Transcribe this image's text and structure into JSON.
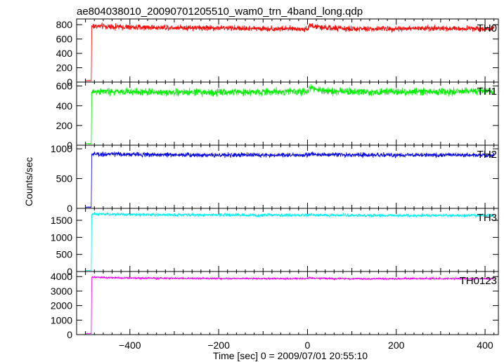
{
  "chart_data": {
    "type": "line",
    "title": "ae804038010_20090701205510_wam0_trn_4band_long.qdp",
    "xlabel": "Time [sec] 0 = 2009/07/01 20:55:10",
    "ylabel": "Counts/sec",
    "xlim": [
      -520,
      430
    ],
    "x_ticks": [
      -400,
      -200,
      0,
      200,
      400
    ],
    "onset_time": -486,
    "panels": [
      {
        "name": "TH0",
        "color": "#ff0000",
        "ylim": [
          0,
          880
        ],
        "y_ticks": [
          0,
          200,
          400,
          600,
          800
        ],
        "pre_level": 20,
        "level": 760,
        "noise": 30,
        "peak": 820,
        "x": [
          -500,
          -487,
          -486,
          -480,
          -400,
          -300,
          -200,
          -100,
          0,
          5,
          30,
          100,
          200,
          300,
          400,
          420
        ],
        "y": [
          20,
          20,
          780,
          780,
          765,
          760,
          755,
          745,
          740,
          790,
          760,
          740,
          745,
          750,
          745,
          740
        ]
      },
      {
        "name": "TH1",
        "color": "#00ee00",
        "ylim": [
          0,
          640
        ],
        "y_ticks": [
          0,
          200,
          400,
          600
        ],
        "pre_level": 15,
        "level": 540,
        "noise": 28,
        "peak": 600,
        "x": [
          -500,
          -487,
          -486,
          -480,
          -400,
          -300,
          -200,
          -100,
          0,
          5,
          30,
          100,
          200,
          300,
          400,
          420
        ],
        "y": [
          15,
          15,
          540,
          545,
          540,
          535,
          535,
          540,
          545,
          585,
          555,
          540,
          540,
          545,
          550,
          555
        ]
      },
      {
        "name": "TH2",
        "color": "#0000dd",
        "ylim": [
          0,
          1060
        ],
        "y_ticks": [
          0,
          500,
          1000
        ],
        "pre_level": 20,
        "level": 900,
        "noise": 28,
        "peak": 960,
        "x": [
          -500,
          -487,
          -486,
          -480,
          -400,
          -300,
          -200,
          -100,
          0,
          5,
          30,
          100,
          200,
          300,
          400,
          420
        ],
        "y": [
          20,
          20,
          910,
          910,
          905,
          900,
          895,
          895,
          895,
          910,
          900,
          895,
          895,
          895,
          895,
          890
        ]
      },
      {
        "name": "TH3",
        "color": "#00eeee",
        "ylim": [
          0,
          1850
        ],
        "y_ticks": [
          0,
          500,
          1000,
          1500
        ],
        "pre_level": 30,
        "level": 1650,
        "noise": 35,
        "peak": 1760,
        "x": [
          -500,
          -487,
          -486,
          -480,
          -400,
          -300,
          -200,
          -100,
          0,
          5,
          30,
          100,
          200,
          300,
          400,
          420
        ],
        "y": [
          30,
          30,
          1680,
          1680,
          1670,
          1660,
          1655,
          1650,
          1650,
          1665,
          1650,
          1645,
          1640,
          1640,
          1640,
          1640
        ]
      },
      {
        "name": "TH0123",
        "color": "#ee00ee",
        "ylim": [
          0,
          4350
        ],
        "y_ticks": [
          0,
          1000,
          2000,
          3000,
          4000
        ],
        "pre_level": 80,
        "level": 3850,
        "noise": 50,
        "peak": 4050,
        "x": [
          -500,
          -487,
          -486,
          -480,
          -400,
          -300,
          -200,
          -100,
          0,
          5,
          30,
          100,
          200,
          300,
          400,
          420
        ],
        "y": [
          80,
          80,
          3950,
          3950,
          3900,
          3880,
          3870,
          3860,
          3860,
          3920,
          3870,
          3850,
          3850,
          3860,
          3860,
          3850
        ]
      }
    ]
  }
}
